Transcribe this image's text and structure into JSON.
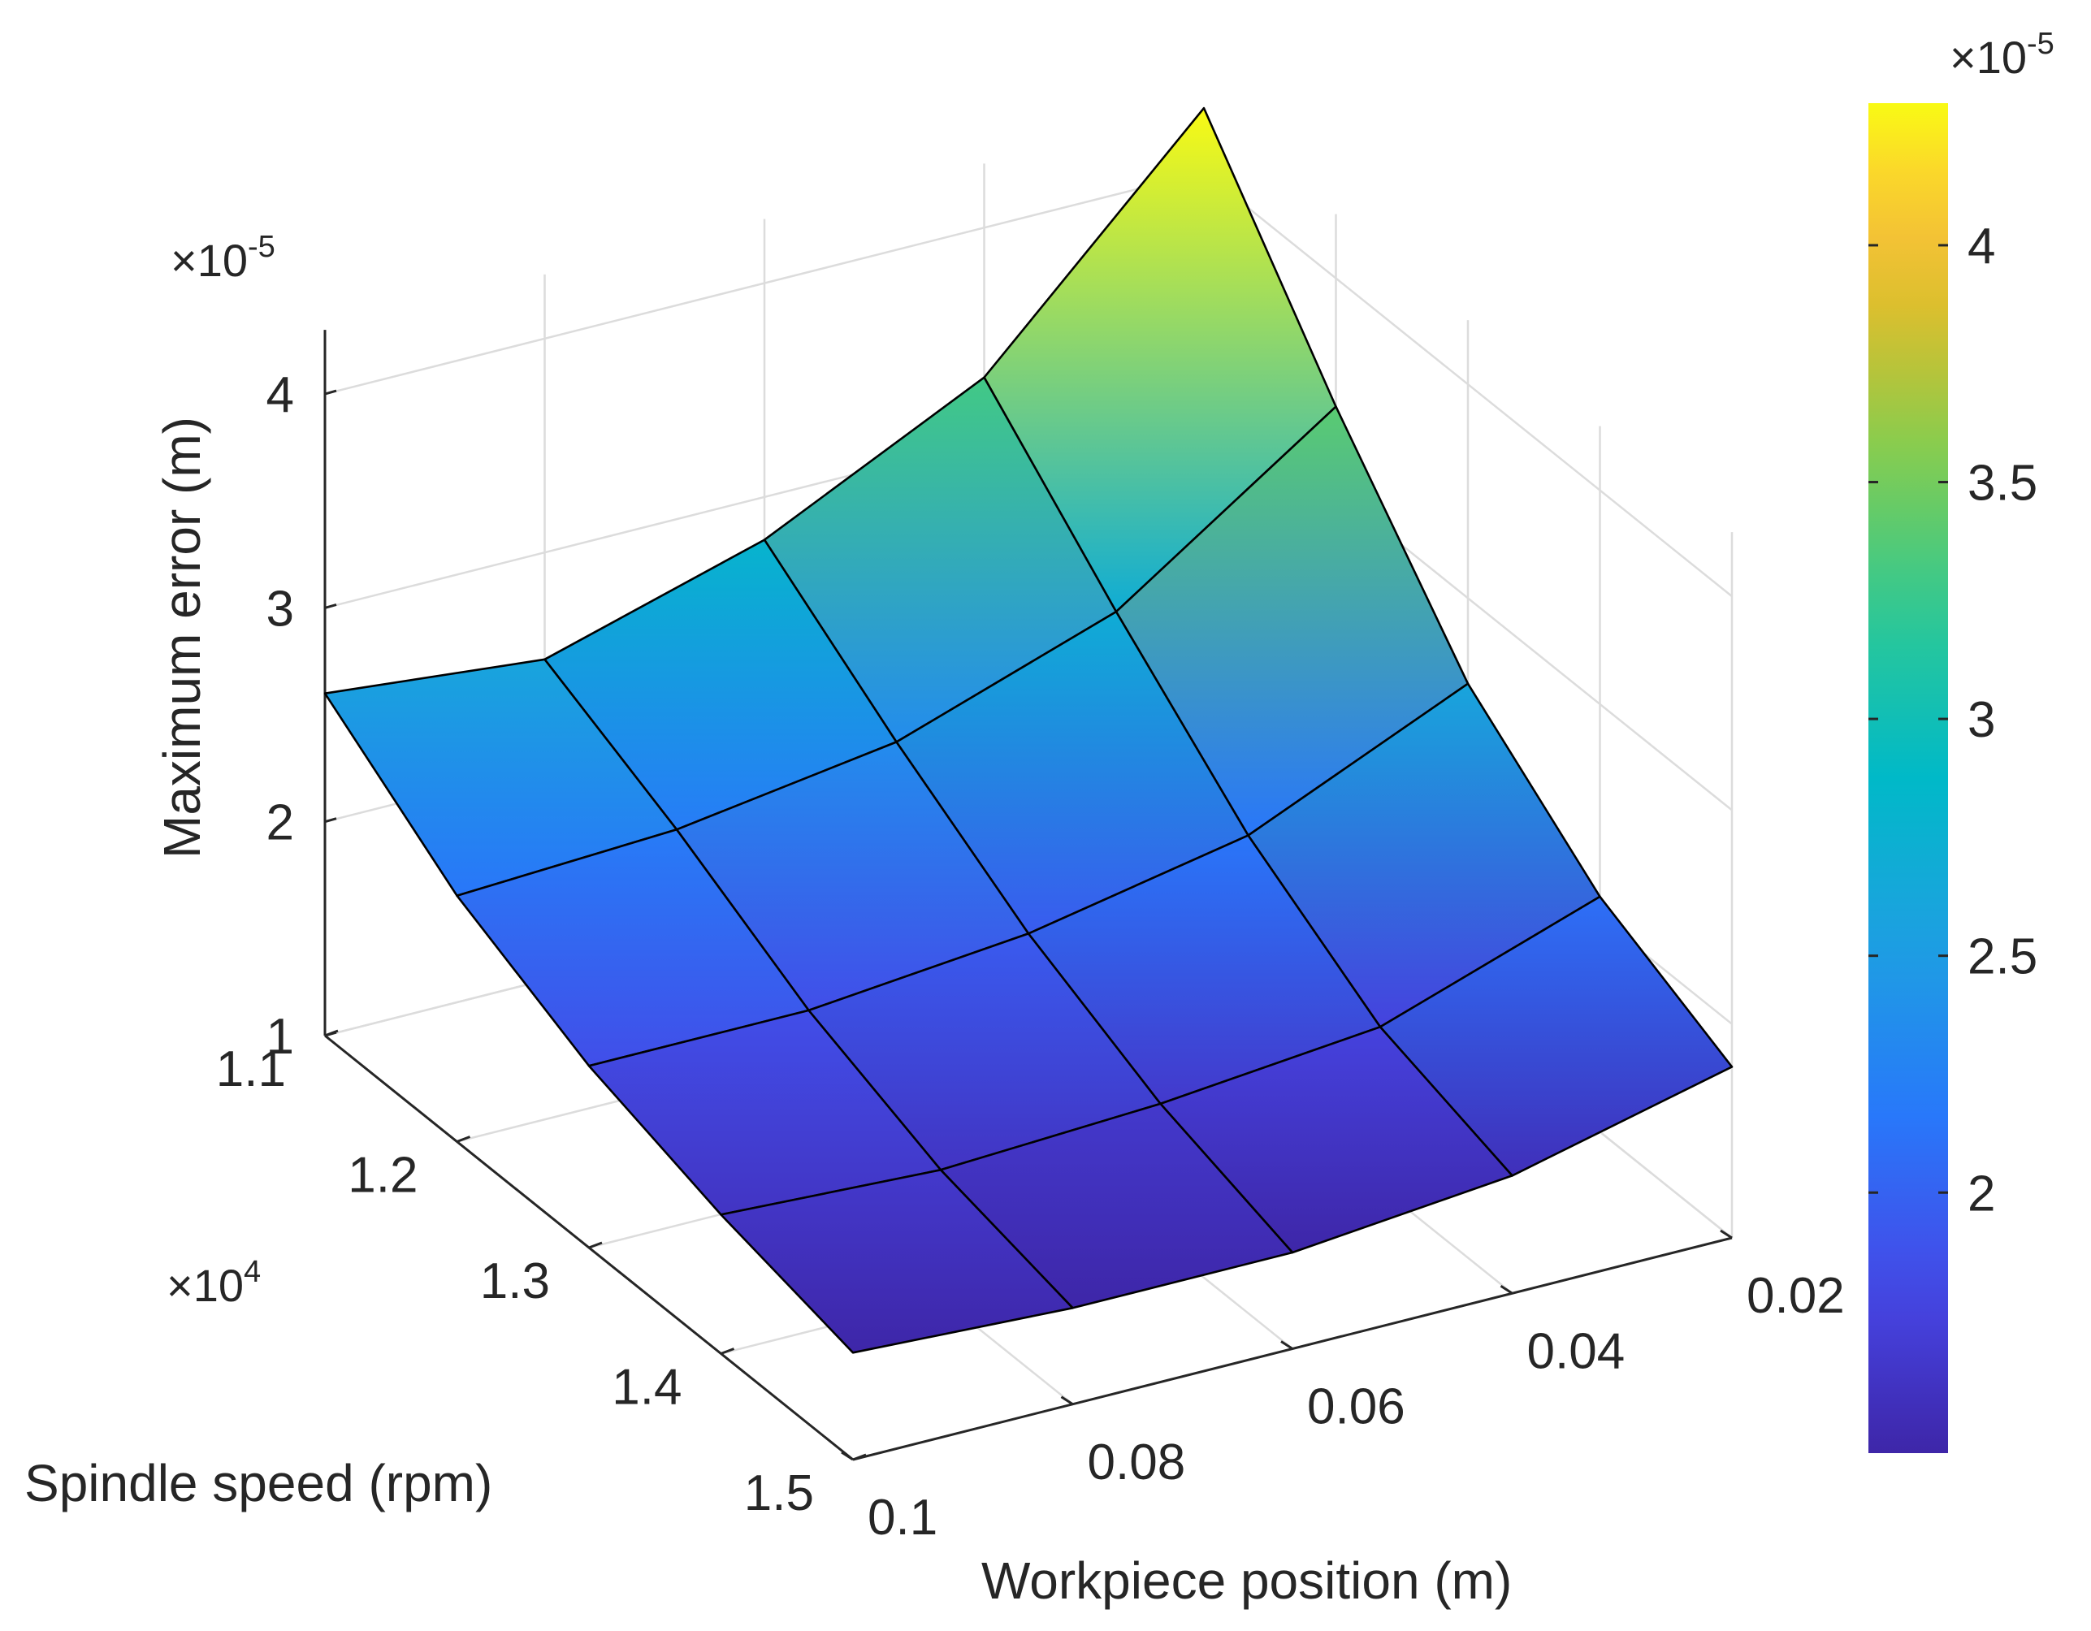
{
  "chart_data": {
    "type": "surface",
    "title": "",
    "xlabel": "Workpiece position (m)",
    "ylabel": "Spindle speed (rpm)",
    "zlabel": "Maximum error (m)",
    "x": [
      0.02,
      0.04,
      0.06,
      0.08,
      0.1
    ],
    "y": [
      11000,
      12000,
      13000,
      14000,
      15000
    ],
    "z_scale": 1e-05,
    "z": [
      [
        4.3,
        3.3,
        2.8,
        2.5,
        2.6
      ],
      [
        3.4,
        2.7,
        2.35,
        2.2,
        2.15
      ],
      [
        2.6,
        2.15,
        1.95,
        1.85,
        1.85
      ],
      [
        2.1,
        1.75,
        1.65,
        1.6,
        1.65
      ],
      [
        1.8,
        1.55,
        1.45,
        1.45,
        1.5
      ]
    ],
    "xticks": [
      "0.02",
      "0.04",
      "0.06",
      "0.08",
      "0.1"
    ],
    "yticks": [
      "1.1",
      "1.2",
      "1.3",
      "1.4",
      "1.5"
    ],
    "zticks": [
      "1",
      "2",
      "3",
      "4"
    ],
    "y_exponent": {
      "base": "×10",
      "power": "4"
    },
    "z_exponent": {
      "base": "×10",
      "power": "-5"
    },
    "zlim": [
      1,
      4.3
    ],
    "colormap": "parula",
    "colorbar": {
      "ticks": [
        "2",
        "2.5",
        "3",
        "3.5",
        "4"
      ],
      "range": [
        1.45,
        4.3
      ],
      "exponent": {
        "base": "×10",
        "power": "-5"
      }
    },
    "grid": true
  }
}
